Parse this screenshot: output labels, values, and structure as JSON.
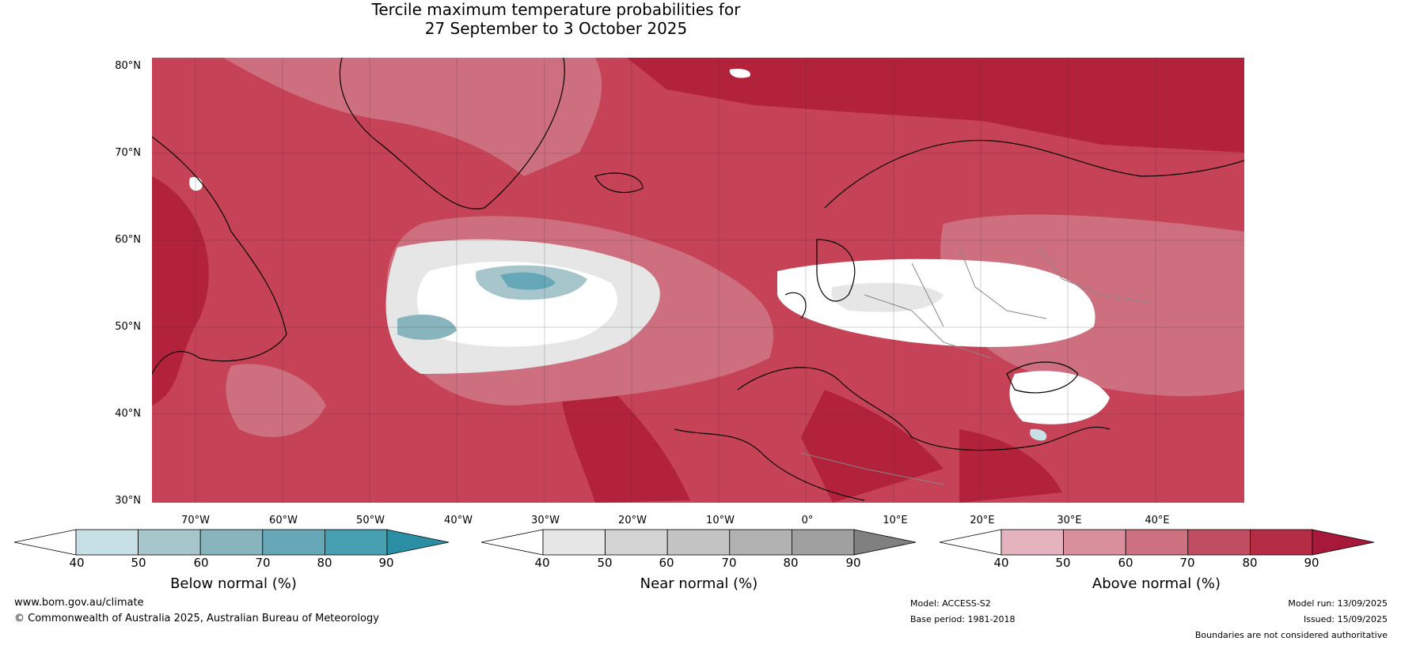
{
  "title": {
    "line1": "Tercile maximum temperature probabilities for",
    "line2": "27 September to 3 October 2025"
  },
  "map": {
    "lat_labels": [
      "80°N",
      "70°N",
      "60°N",
      "50°N",
      "40°N",
      "30°N"
    ],
    "lon_labels": [
      "70°W",
      "60°W",
      "50°W",
      "40°W",
      "30°W",
      "20°W",
      "10°W",
      "0°",
      "10°E",
      "20°E",
      "30°E",
      "40°E"
    ],
    "colors": {
      "above_base": "#c64256",
      "above_dark": "#b01f39",
      "coast": "#000000",
      "border": "#888888"
    }
  },
  "colorbars": [
    {
      "name": "below",
      "title": "Below normal (%)",
      "ticks": [
        "40",
        "50",
        "60",
        "70",
        "80",
        "90"
      ],
      "colors": [
        "#ffffff",
        "#c7e0e6",
        "#a7c6cc",
        "#88b4be",
        "#66a8b8",
        "#46a0b2",
        "#2a8fa4"
      ]
    },
    {
      "name": "near",
      "title": "Near normal (%)",
      "ticks": [
        "40",
        "50",
        "60",
        "70",
        "80",
        "90"
      ],
      "colors": [
        "#ffffff",
        "#e6e6e6",
        "#d4d4d4",
        "#c4c4c4",
        "#b2b2b2",
        "#a0a0a0",
        "#808080"
      ]
    },
    {
      "name": "above",
      "title": "Above normal (%)",
      "ticks": [
        "40",
        "50",
        "60",
        "70",
        "80",
        "90"
      ],
      "colors": [
        "#ffffff",
        "#e4b3bd",
        "#d98f9c",
        "#cd707f",
        "#c14d62",
        "#b52d45",
        "#a8183a"
      ]
    }
  ],
  "footer": {
    "website": "www.bom.gov.au/climate",
    "copyright": "© Commonwealth of Australia 2025, Australian Bureau of Meteorology",
    "model": "Model: ACCESS-S2",
    "base_period": "Base period: 1981-2018",
    "model_run": "Model run: 13/09/2025",
    "issued": "Issued: 15/09/2025",
    "disclaimer": "Boundaries are not considered authoritative"
  }
}
